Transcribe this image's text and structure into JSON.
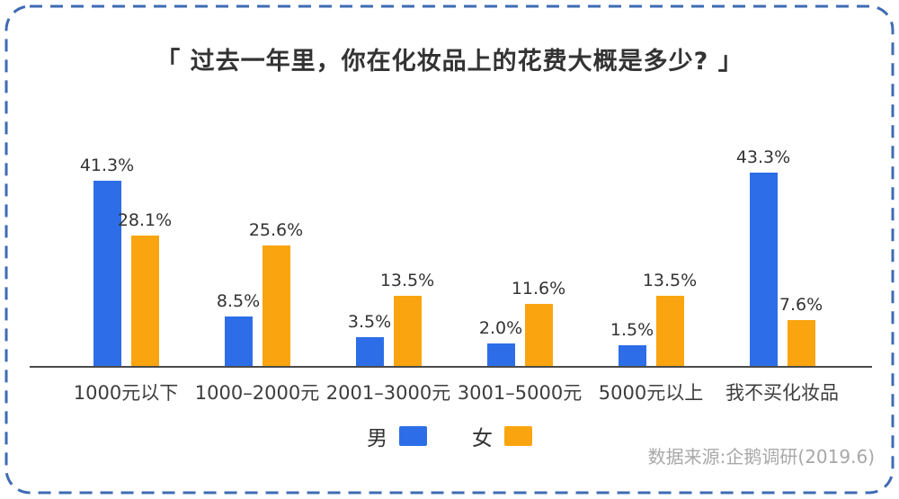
{
  "title": "「 过去一年里，你在化妆品上的花费大概是多少? 」",
  "source_note": "数据来源:企鹅调研(2019.6)",
  "colors": {
    "male_blue": "#2D6EE8",
    "female_orange": "#FAA50F",
    "border_blue": "#3E6BB4",
    "axis_gray": "#4A4A4A",
    "text_dark": "#333333",
    "source_gray": "#A8A8A8"
  },
  "chart_data": {
    "type": "bar",
    "title": "「 过去一年里，你在化妆品上的花费大概是多少? 」",
    "categories": [
      "1000元以下",
      "1000–2000元",
      "2001–3000元",
      "3001–5000元",
      "5000元以上",
      "我不买化妆品"
    ],
    "series": [
      {
        "name": "男",
        "color": "#2D6EE8",
        "values": [
          41.3,
          8.5,
          3.5,
          2.0,
          1.5,
          43.3
        ]
      },
      {
        "name": "女",
        "color": "#FAA50F",
        "values": [
          28.1,
          25.6,
          13.5,
          11.6,
          13.5,
          7.6
        ]
      }
    ],
    "value_labels": [
      [
        "41.3%",
        "8.5%",
        "3.5%",
        "2.0%",
        "1.5%",
        "43.3%"
      ],
      [
        "28.1%",
        "25.6%",
        "13.5%",
        "11.6%",
        "13.5%",
        "7.6%"
      ]
    ],
    "unit": "percent",
    "ylim": [
      0,
      45
    ],
    "grid": false,
    "value_labels_shown": true,
    "legend_position": "bottom",
    "source": "数据来源:企鹅调研(2019.6)"
  }
}
